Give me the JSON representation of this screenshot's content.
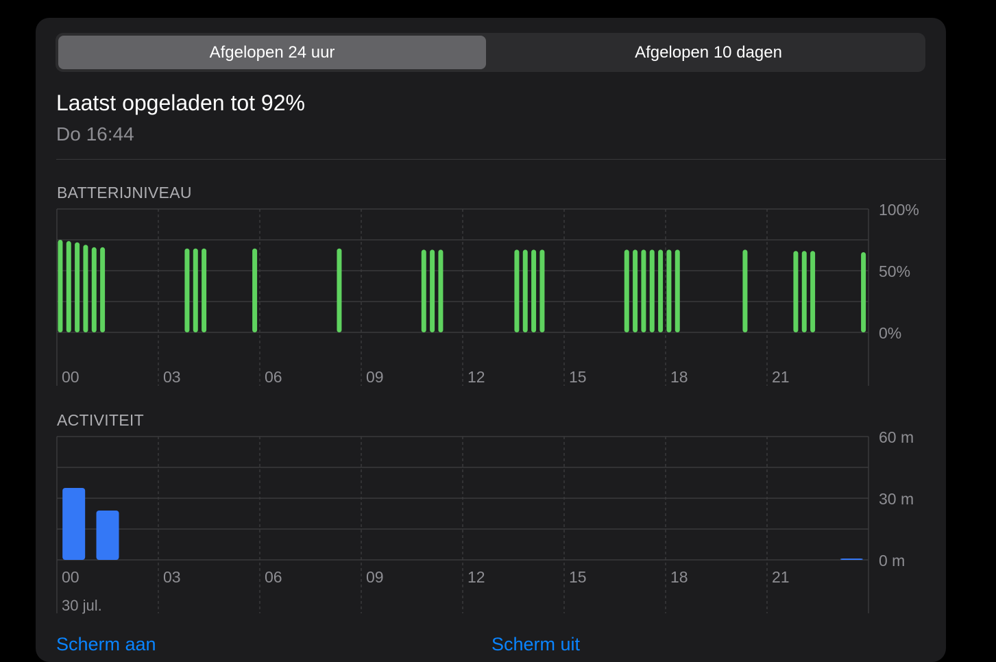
{
  "tabs": [
    {
      "label": "Afgelopen 24 uur",
      "active": true
    },
    {
      "label": "Afgelopen 10 dagen",
      "active": false
    }
  ],
  "summary": {
    "title": "Laatst opgeladen tot 92%",
    "subtitle": "Do 16:44"
  },
  "battery_section": {
    "label": "BATTERIJNIVEAU"
  },
  "activity_section": {
    "label": "ACTIVITEIT"
  },
  "date_label": "30 jul.",
  "links": {
    "screen_on": "Scherm aan",
    "screen_off": "Scherm uit"
  },
  "colors": {
    "battery_bar": "#5fd35f",
    "activity_bar": "#3478f6",
    "link": "#0a84ff"
  },
  "chart_data": [
    {
      "type": "bar",
      "ylabels": [
        "100%",
        "50%",
        "0%"
      ],
      "ylim": [
        0,
        100
      ],
      "xlim": [
        0,
        24
      ],
      "xticks": [
        "00",
        "03",
        "06",
        "09",
        "12",
        "15",
        "18",
        "21"
      ],
      "grid": true,
      "x": [
        0.1,
        0.35,
        0.6,
        0.85,
        1.1,
        1.35,
        3.85,
        4.1,
        4.35,
        5.85,
        8.35,
        10.85,
        11.1,
        11.35,
        13.6,
        13.85,
        14.1,
        14.35,
        16.85,
        17.1,
        17.35,
        17.6,
        17.85,
        18.1,
        18.35,
        20.35,
        21.85,
        22.1,
        22.35,
        23.85
      ],
      "values": [
        75,
        74,
        73,
        71,
        69,
        69,
        68,
        68,
        68,
        68,
        68,
        67,
        67,
        67,
        67,
        67,
        67,
        67,
        67,
        67,
        67,
        67,
        67,
        67,
        67,
        67,
        66,
        66,
        66,
        65
      ]
    },
    {
      "type": "bar",
      "ylabels": [
        "60 m",
        "30 m",
        "0 m"
      ],
      "ylim": [
        0,
        60
      ],
      "xlim": [
        0,
        24
      ],
      "xticks": [
        "00",
        "03",
        "06",
        "09",
        "12",
        "15",
        "18",
        "21"
      ],
      "grid": true,
      "x": [
        0.5,
        1.5,
        23.5
      ],
      "values": [
        35,
        24,
        0.6
      ]
    }
  ]
}
